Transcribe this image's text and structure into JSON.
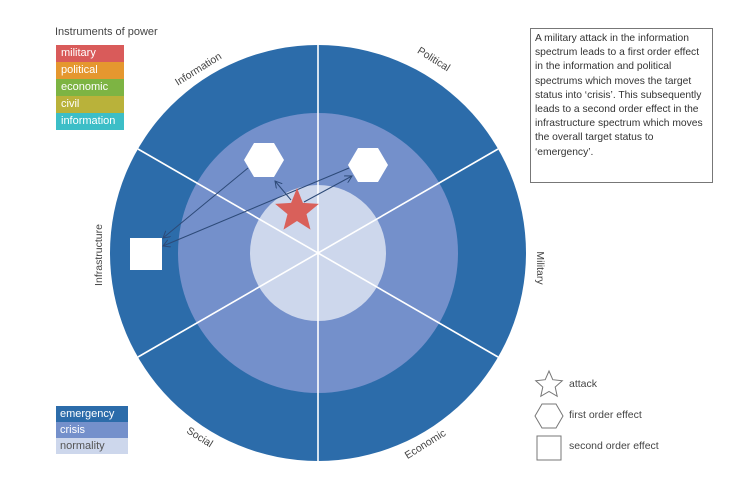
{
  "instruments": {
    "title": "Instruments of power",
    "items": [
      {
        "label": "military",
        "color": "#d95b5a"
      },
      {
        "label": "political",
        "color": "#e5972f"
      },
      {
        "label": "economic",
        "color": "#7db443"
      },
      {
        "label": "civil",
        "color": "#b9b23a"
      },
      {
        "label": "information",
        "color": "#3cbec7"
      }
    ]
  },
  "status": {
    "items": [
      {
        "label": "emergency",
        "color": "#2c6caa",
        "text_color": "#ffffff"
      },
      {
        "label": "crisis",
        "color": "#7490cb",
        "text_color": "#ffffff"
      },
      {
        "label": "normality",
        "color": "#cdd7ec",
        "text_color": "#555555"
      }
    ]
  },
  "sectors": {
    "information": "Information",
    "political": "Political",
    "military": "Military",
    "economic": "Economic",
    "social": "Social",
    "infrastructure": "Infrastructure"
  },
  "description": "A military attack in the information spectrum leads to a first order effect in the information and political spectrums which moves the target status into ‘crisis’.  This subsequently leads to a second order effect in the infrastructure spectrum which moves the overall target status to ‘emergency’.",
  "key": {
    "attack": "attack",
    "first_order": "first order effect",
    "second_order": "second order effect"
  },
  "colors": {
    "attack": "#d9605a",
    "arrow": "#2d4a78"
  }
}
